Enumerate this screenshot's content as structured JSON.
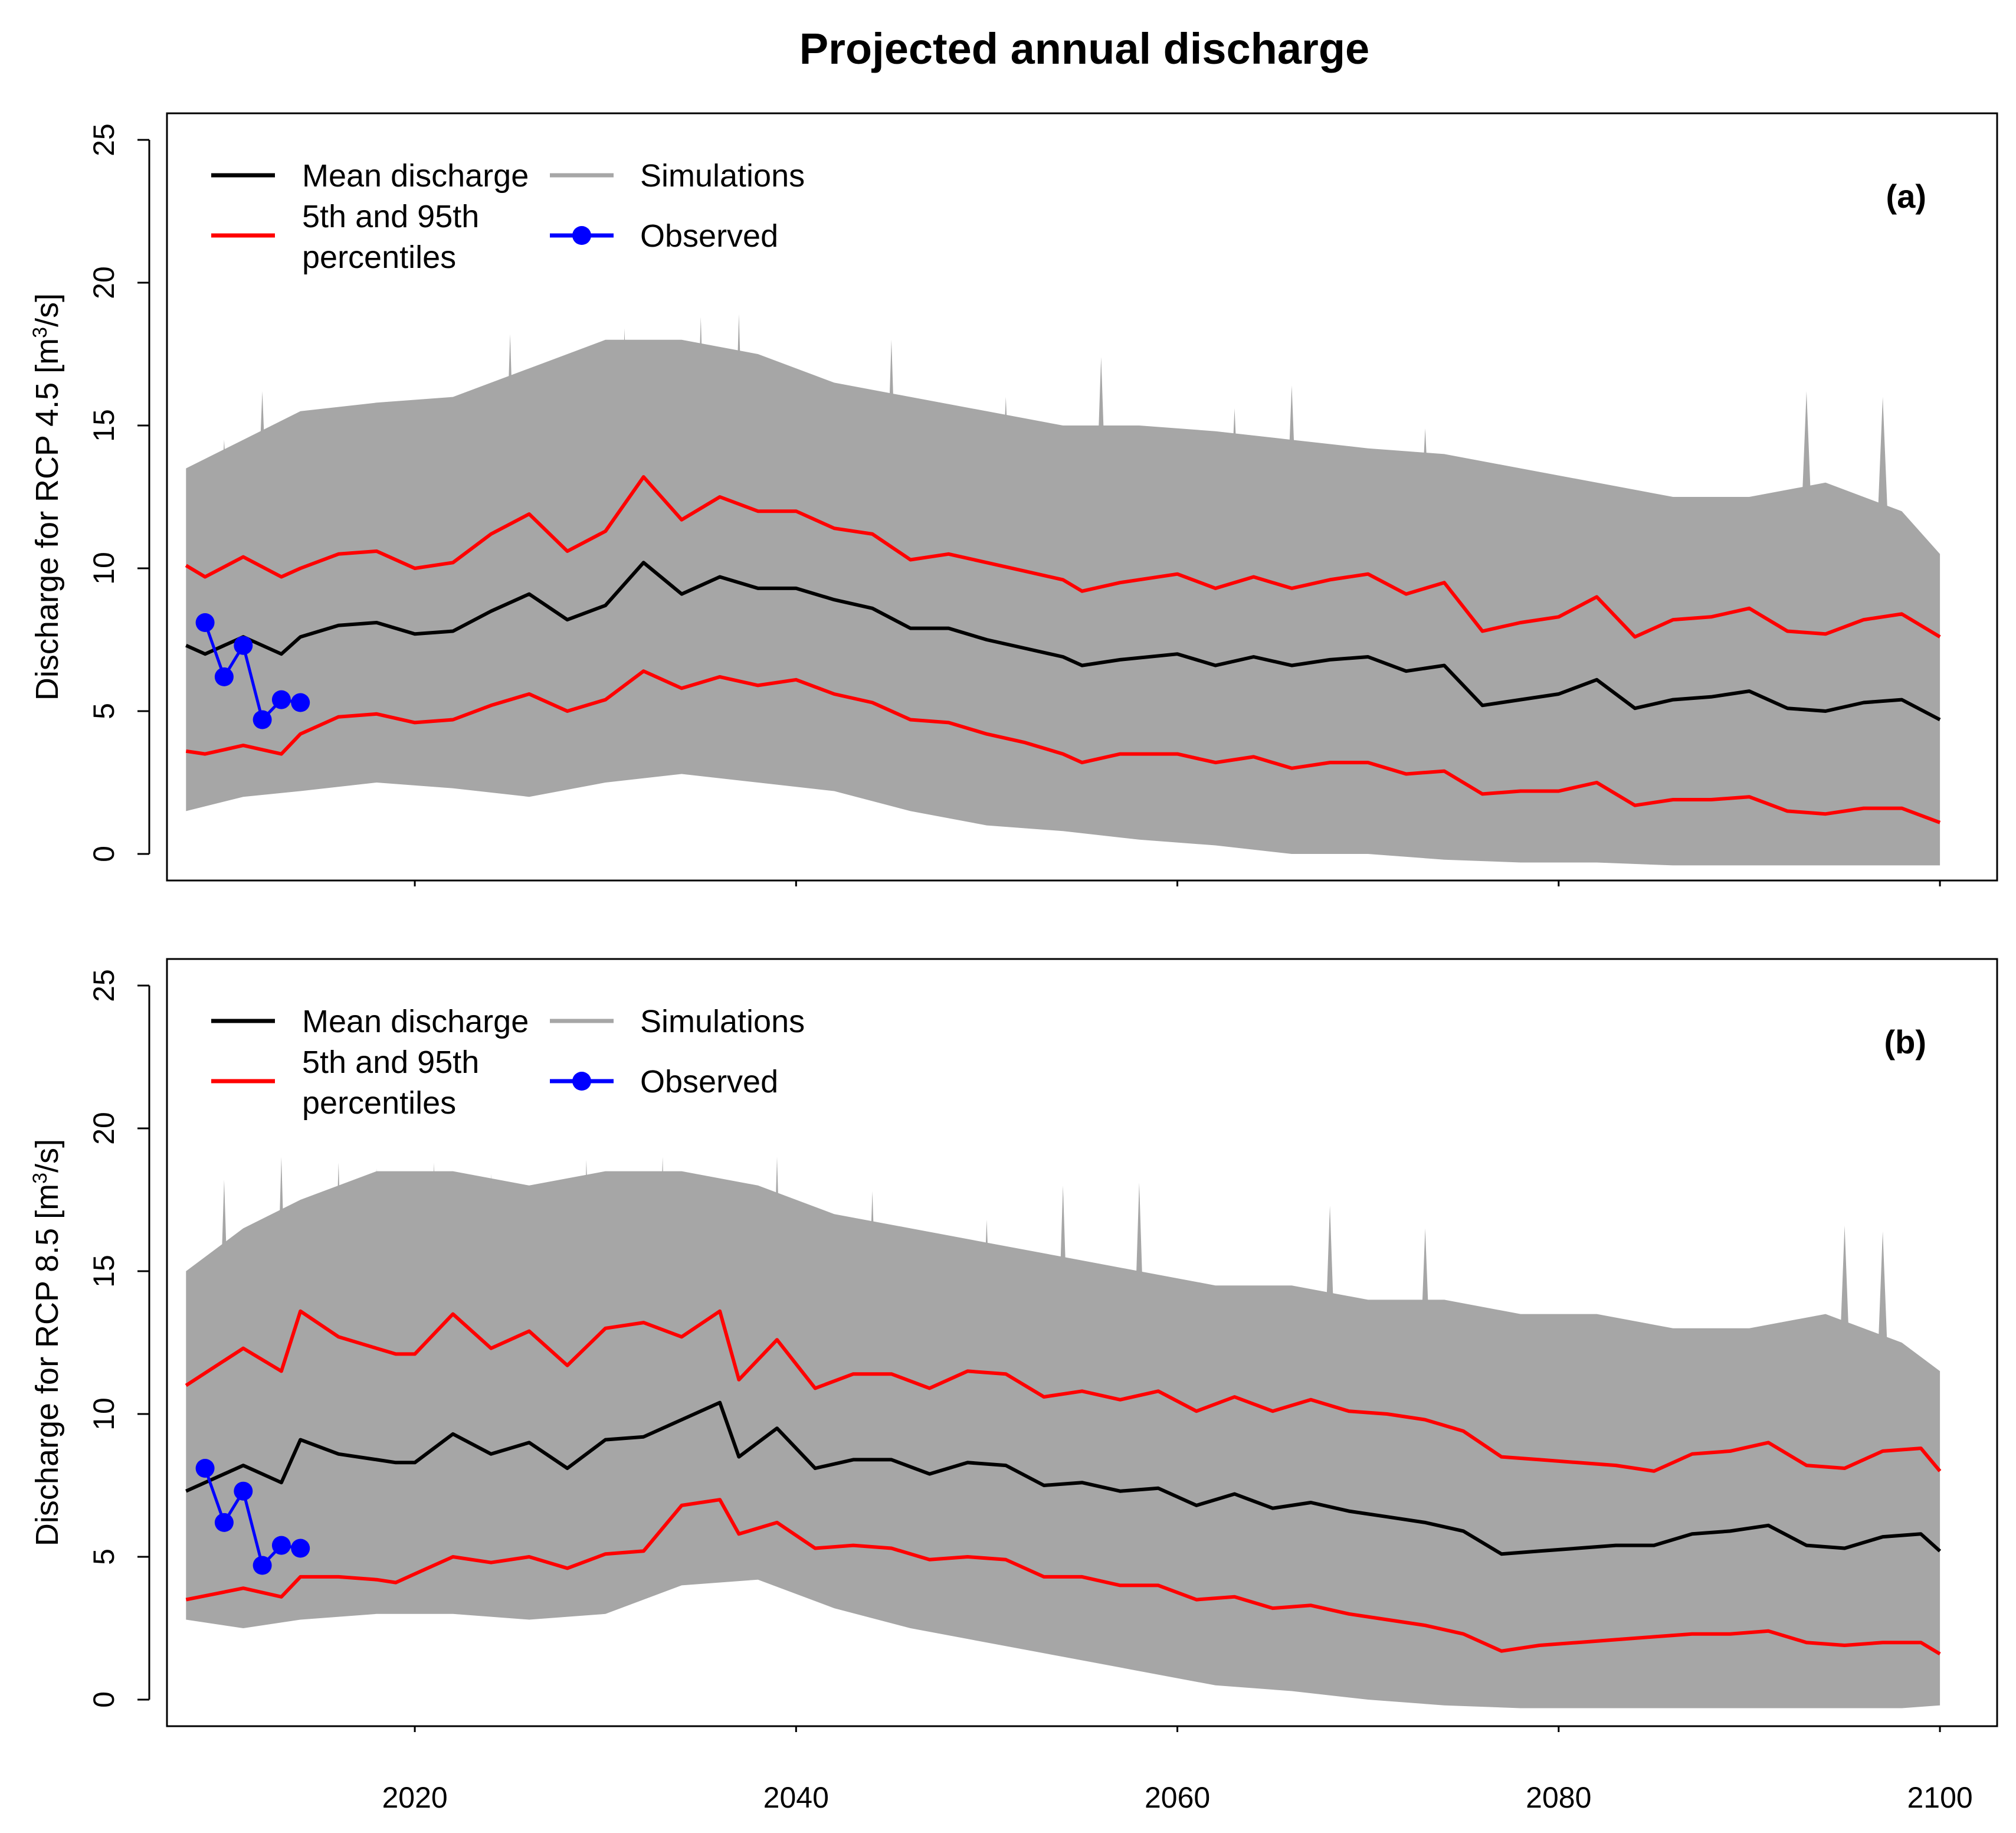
{
  "chart_data": {
    "title": "Projected annual discharge",
    "type": "line",
    "xlim": [
      2007,
      2103
    ],
    "ylim": [
      0,
      25
    ],
    "x_ticks": [
      2020,
      2040,
      2060,
      2080,
      2100
    ],
    "y_ticks": [
      0,
      5,
      10,
      15,
      20,
      25
    ],
    "legend": {
      "mean": "Mean discharge",
      "simulations": "Simulations",
      "percentiles_line1": "5th and 95th",
      "percentiles_line2": "percentiles",
      "observed": "Observed"
    },
    "colors": {
      "mean": "#000000",
      "percentiles": "#ff0000",
      "simulations": "#a6a6a6",
      "observed": "#0000ff"
    },
    "panels": [
      {
        "panel_label": "(a)",
        "ylabel_prefix": "Discharge for RCP 4.5 [m",
        "ylabel_sup": "3",
        "ylabel_suffix": "/s]",
        "band_upper_years": [
          2008,
          2011,
          2014,
          2018,
          2022,
          2026,
          2030,
          2034,
          2038,
          2042,
          2046,
          2050,
          2054,
          2058,
          2062,
          2066,
          2070,
          2074,
          2078,
          2082,
          2086,
          2090,
          2094,
          2098,
          2100
        ],
        "band_upper_values": [
          13.5,
          14.5,
          15.5,
          15.8,
          16.0,
          17.0,
          18.0,
          18.0,
          17.5,
          16.5,
          16.0,
          15.5,
          15.0,
          15.0,
          14.8,
          14.5,
          14.2,
          14.0,
          13.5,
          13.0,
          12.5,
          12.5,
          13.0,
          12.0,
          10.5
        ],
        "band_lower_years": [
          2008,
          2011,
          2014,
          2018,
          2022,
          2026,
          2030,
          2034,
          2038,
          2042,
          2046,
          2050,
          2054,
          2058,
          2062,
          2066,
          2070,
          2074,
          2078,
          2082,
          2086,
          2090,
          2094,
          2098,
          2100
        ],
        "band_lower_values": [
          1.5,
          2.0,
          2.2,
          2.5,
          2.3,
          2.0,
          2.5,
          2.8,
          2.5,
          2.2,
          1.5,
          1.0,
          0.8,
          0.5,
          0.3,
          0.0,
          0.0,
          -0.2,
          -0.3,
          -0.3,
          -0.4,
          -0.4,
          -0.4,
          -0.4,
          -0.4
        ],
        "simulation_peaks": [
          {
            "x": 2010,
            "y": 14.5
          },
          {
            "x": 2012,
            "y": 16.2
          },
          {
            "x": 2015,
            "y": 15.4
          },
          {
            "x": 2017,
            "y": 15.0
          },
          {
            "x": 2021,
            "y": 15.0
          },
          {
            "x": 2023,
            "y": 16.0
          },
          {
            "x": 2025,
            "y": 18.2
          },
          {
            "x": 2029,
            "y": 17.5
          },
          {
            "x": 2031,
            "y": 18.4
          },
          {
            "x": 2035,
            "y": 18.8
          },
          {
            "x": 2037,
            "y": 18.9
          },
          {
            "x": 2039,
            "y": 17.0
          },
          {
            "x": 2045,
            "y": 18.0
          },
          {
            "x": 2051,
            "y": 16.0
          },
          {
            "x": 2056,
            "y": 17.4
          },
          {
            "x": 2063,
            "y": 15.6
          },
          {
            "x": 2066,
            "y": 16.4
          },
          {
            "x": 2073,
            "y": 14.9
          },
          {
            "x": 2093,
            "y": 16.2
          },
          {
            "x": 2097,
            "y": 16.0
          }
        ],
        "mean_years": [
          2008,
          2009,
          2011,
          2013,
          2014,
          2016,
          2018,
          2020,
          2022,
          2024,
          2026,
          2028,
          2030,
          2032,
          2034,
          2036,
          2038,
          2040,
          2042,
          2044,
          2046,
          2048,
          2050,
          2052,
          2054,
          2055,
          2057,
          2060,
          2062,
          2064,
          2066,
          2068,
          2070,
          2072,
          2074,
          2076,
          2078,
          2080,
          2082,
          2084,
          2086,
          2088,
          2090,
          2092,
          2094,
          2096,
          2098,
          2100
        ],
        "mean_values": [
          7.3,
          7.0,
          7.6,
          7.0,
          7.6,
          8.0,
          8.1,
          7.7,
          7.8,
          8.5,
          9.1,
          8.2,
          8.7,
          10.2,
          9.1,
          9.7,
          9.3,
          9.3,
          8.9,
          8.6,
          7.9,
          7.9,
          7.5,
          7.2,
          6.9,
          6.6,
          6.8,
          7.0,
          6.6,
          6.9,
          6.6,
          6.8,
          6.9,
          6.4,
          6.6,
          5.2,
          5.4,
          5.6,
          6.1,
          5.1,
          5.4,
          5.5,
          5.7,
          5.1,
          5.0,
          5.3,
          5.4,
          4.7
        ],
        "p95_years": [
          2008,
          2009,
          2011,
          2013,
          2014,
          2016,
          2018,
          2020,
          2022,
          2024,
          2026,
          2028,
          2030,
          2032,
          2034,
          2036,
          2038,
          2040,
          2042,
          2044,
          2046,
          2048,
          2050,
          2052,
          2054,
          2055,
          2057,
          2060,
          2062,
          2064,
          2066,
          2068,
          2070,
          2072,
          2074,
          2076,
          2078,
          2080,
          2082,
          2084,
          2086,
          2088,
          2090,
          2092,
          2094,
          2096,
          2098,
          2100
        ],
        "p95_values": [
          10.1,
          9.7,
          10.4,
          9.7,
          10.0,
          10.5,
          10.6,
          10.0,
          10.2,
          11.2,
          11.9,
          10.6,
          11.3,
          13.2,
          11.7,
          12.5,
          12.0,
          12.0,
          11.4,
          11.2,
          10.3,
          10.5,
          10.2,
          9.9,
          9.6,
          9.2,
          9.5,
          9.8,
          9.3,
          9.7,
          9.3,
          9.6,
          9.8,
          9.1,
          9.5,
          7.8,
          8.1,
          8.3,
          9.0,
          7.6,
          8.2,
          8.3,
          8.6,
          7.8,
          7.7,
          8.2,
          8.4,
          7.6
        ],
        "p5_years": [
          2008,
          2009,
          2011,
          2013,
          2014,
          2016,
          2018,
          2020,
          2022,
          2024,
          2026,
          2028,
          2030,
          2032,
          2034,
          2036,
          2038,
          2040,
          2042,
          2044,
          2046,
          2048,
          2050,
          2052,
          2054,
          2055,
          2057,
          2060,
          2062,
          2064,
          2066,
          2068,
          2070,
          2072,
          2074,
          2076,
          2078,
          2080,
          2082,
          2084,
          2086,
          2088,
          2090,
          2092,
          2094,
          2096,
          2098,
          2100
        ],
        "p5_values": [
          3.6,
          3.5,
          3.8,
          3.5,
          4.2,
          4.8,
          4.9,
          4.6,
          4.7,
          5.2,
          5.6,
          5.0,
          5.4,
          6.4,
          5.8,
          6.2,
          5.9,
          6.1,
          5.6,
          5.3,
          4.7,
          4.6,
          4.2,
          3.9,
          3.5,
          3.2,
          3.5,
          3.5,
          3.2,
          3.4,
          3.0,
          3.2,
          3.2,
          2.8,
          2.9,
          2.1,
          2.2,
          2.2,
          2.5,
          1.7,
          1.9,
          1.9,
          2.0,
          1.5,
          1.4,
          1.6,
          1.6,
          1.1
        ],
        "observed_years": [
          2009,
          2010,
          2011,
          2012,
          2013,
          2014
        ],
        "observed_values": [
          8.1,
          6.2,
          7.3,
          4.7,
          5.4,
          5.3
        ]
      },
      {
        "panel_label": "(b)",
        "ylabel_prefix": "Discharge for RCP 8.5 [m",
        "ylabel_sup": "3",
        "ylabel_suffix": "/s]",
        "band_upper_years": [
          2008,
          2011,
          2014,
          2018,
          2022,
          2026,
          2030,
          2034,
          2038,
          2042,
          2046,
          2050,
          2054,
          2058,
          2062,
          2066,
          2070,
          2074,
          2078,
          2082,
          2086,
          2090,
          2094,
          2098,
          2100
        ],
        "band_upper_values": [
          15.0,
          16.5,
          17.5,
          18.5,
          18.5,
          18.0,
          18.5,
          18.5,
          18.0,
          17.0,
          16.5,
          16.0,
          15.5,
          15.0,
          14.5,
          14.5,
          14.0,
          14.0,
          13.5,
          13.5,
          13.0,
          13.0,
          13.5,
          12.5,
          11.5
        ],
        "band_lower_years": [
          2008,
          2011,
          2014,
          2018,
          2022,
          2026,
          2030,
          2034,
          2038,
          2042,
          2046,
          2050,
          2054,
          2058,
          2062,
          2066,
          2070,
          2074,
          2078,
          2082,
          2086,
          2090,
          2094,
          2098,
          2100
        ],
        "band_lower_values": [
          2.8,
          2.5,
          2.8,
          3.0,
          3.0,
          2.8,
          3.0,
          4.0,
          4.2,
          3.2,
          2.5,
          2.0,
          1.5,
          1.0,
          0.5,
          0.3,
          0.0,
          -0.2,
          -0.3,
          -0.3,
          -0.3,
          -0.3,
          -0.3,
          -0.3,
          -0.2
        ],
        "simulation_peaks": [
          {
            "x": 2010,
            "y": 18.2
          },
          {
            "x": 2013,
            "y": 19.0
          },
          {
            "x": 2016,
            "y": 18.8
          },
          {
            "x": 2018,
            "y": 18.6
          },
          {
            "x": 2021,
            "y": 18.8
          },
          {
            "x": 2024,
            "y": 18.4
          },
          {
            "x": 2029,
            "y": 18.9
          },
          {
            "x": 2033,
            "y": 19.0
          },
          {
            "x": 2039,
            "y": 19.0
          },
          {
            "x": 2044,
            "y": 17.8
          },
          {
            "x": 2050,
            "y": 16.8
          },
          {
            "x": 2054,
            "y": 18.0
          },
          {
            "x": 2058,
            "y": 18.1
          },
          {
            "x": 2068,
            "y": 17.3
          },
          {
            "x": 2073,
            "y": 16.5
          },
          {
            "x": 2095,
            "y": 16.6
          },
          {
            "x": 2097,
            "y": 16.4
          }
        ],
        "mean_years": [
          2008,
          2011,
          2013,
          2014,
          2016,
          2018,
          2019,
          2020,
          2022,
          2024,
          2026,
          2028,
          2030,
          2032,
          2034,
          2036,
          2037,
          2039,
          2041,
          2043,
          2045,
          2047,
          2049,
          2051,
          2053,
          2055,
          2057,
          2059,
          2061,
          2063,
          2065,
          2067,
          2069,
          2071,
          2073,
          2075,
          2077,
          2079,
          2081,
          2083,
          2085,
          2087,
          2089,
          2091,
          2093,
          2095,
          2097,
          2099,
          2100
        ],
        "mean_values": [
          7.3,
          8.2,
          7.6,
          9.1,
          8.6,
          8.4,
          8.3,
          8.3,
          9.3,
          8.6,
          9.0,
          8.1,
          9.1,
          9.2,
          9.8,
          10.4,
          8.5,
          9.5,
          8.1,
          8.4,
          8.4,
          7.9,
          8.3,
          8.2,
          7.5,
          7.6,
          7.3,
          7.4,
          6.8,
          7.2,
          6.7,
          6.9,
          6.6,
          6.4,
          6.2,
          5.9,
          5.1,
          5.2,
          5.3,
          5.4,
          5.4,
          5.8,
          5.9,
          6.1,
          5.4,
          5.3,
          5.7,
          5.8,
          5.2
        ],
        "p95_years": [
          2008,
          2011,
          2013,
          2014,
          2016,
          2018,
          2019,
          2020,
          2022,
          2024,
          2026,
          2028,
          2030,
          2032,
          2034,
          2036,
          2037,
          2039,
          2041,
          2043,
          2045,
          2047,
          2049,
          2051,
          2053,
          2055,
          2057,
          2059,
          2061,
          2063,
          2065,
          2067,
          2069,
          2071,
          2073,
          2075,
          2077,
          2079,
          2081,
          2083,
          2085,
          2087,
          2089,
          2091,
          2093,
          2095,
          2097,
          2099,
          2100
        ],
        "p95_values": [
          11.0,
          12.3,
          11.5,
          13.6,
          12.7,
          12.3,
          12.1,
          12.1,
          13.5,
          12.3,
          12.9,
          11.7,
          13.0,
          13.2,
          12.7,
          13.6,
          11.2,
          12.6,
          10.9,
          11.4,
          11.4,
          10.9,
          11.5,
          11.4,
          10.6,
          10.8,
          10.5,
          10.8,
          10.1,
          10.6,
          10.1,
          10.5,
          10.1,
          10.0,
          9.8,
          9.4,
          8.5,
          8.4,
          8.3,
          8.2,
          8.0,
          8.6,
          8.7,
          9.0,
          8.2,
          8.1,
          8.7,
          8.8,
          8.0
        ],
        "p5_years": [
          2008,
          2011,
          2013,
          2014,
          2016,
          2018,
          2019,
          2020,
          2022,
          2024,
          2026,
          2028,
          2030,
          2032,
          2034,
          2036,
          2037,
          2039,
          2041,
          2043,
          2045,
          2047,
          2049,
          2051,
          2053,
          2055,
          2057,
          2059,
          2061,
          2063,
          2065,
          2067,
          2069,
          2071,
          2073,
          2075,
          2077,
          2079,
          2081,
          2083,
          2085,
          2087,
          2089,
          2091,
          2093,
          2095,
          2097,
          2099,
          2100
        ],
        "p5_values": [
          3.5,
          3.9,
          3.6,
          4.3,
          4.3,
          4.2,
          4.1,
          4.4,
          5.0,
          4.8,
          5.0,
          4.6,
          5.1,
          5.2,
          6.8,
          7.0,
          5.8,
          6.2,
          5.3,
          5.4,
          5.3,
          4.9,
          5.0,
          4.9,
          4.3,
          4.3,
          4.0,
          4.0,
          3.5,
          3.6,
          3.2,
          3.3,
          3.0,
          2.8,
          2.6,
          2.3,
          1.7,
          1.9,
          2.0,
          2.1,
          2.2,
          2.3,
          2.3,
          2.4,
          2.0,
          1.9,
          2.0,
          2.0,
          1.6
        ],
        "observed_years": [
          2009,
          2010,
          2011,
          2012,
          2013,
          2014
        ],
        "observed_values": [
          8.1,
          6.2,
          7.3,
          4.7,
          5.4,
          5.3
        ]
      }
    ]
  }
}
